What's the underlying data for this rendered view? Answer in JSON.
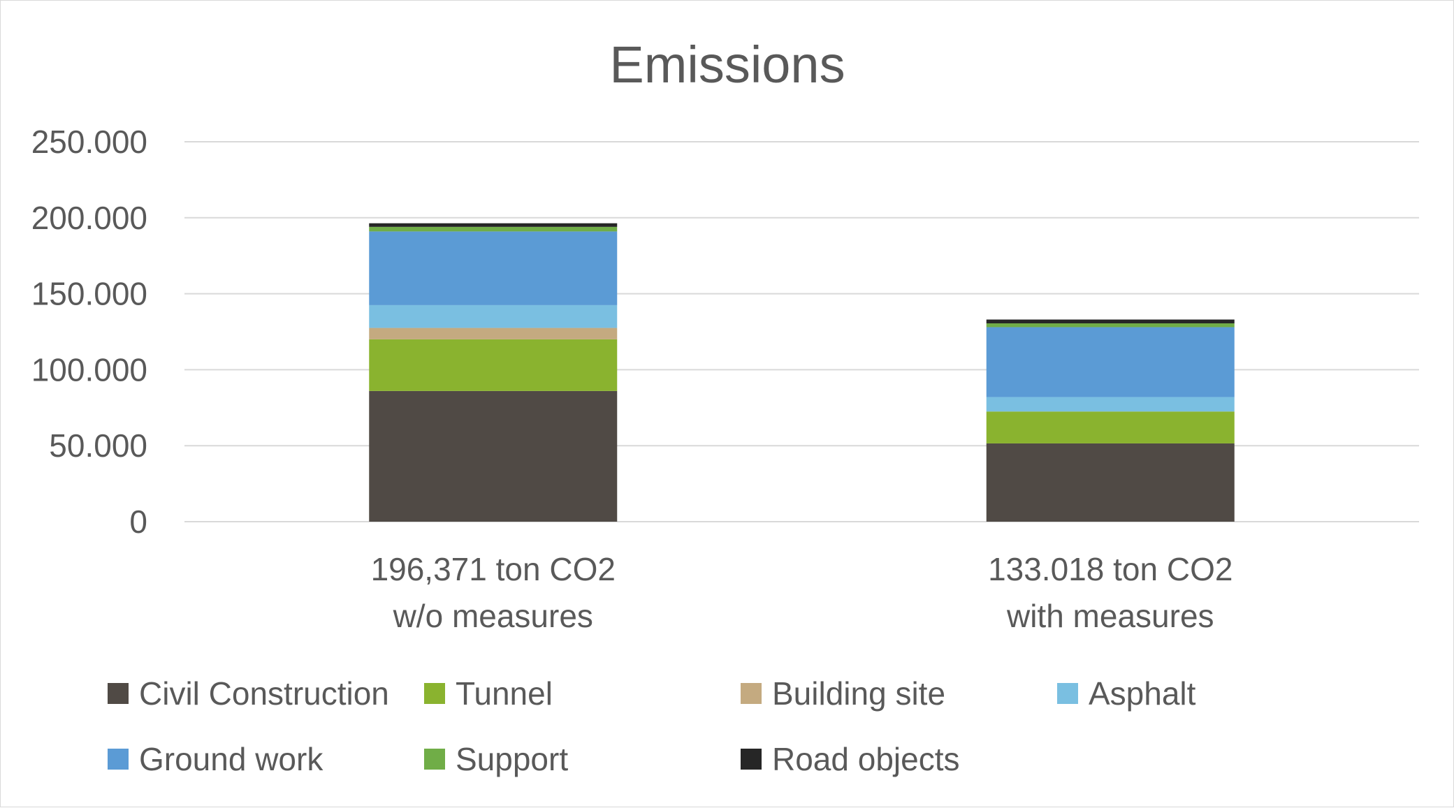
{
  "chart_data": {
    "type": "bar",
    "stacked": true,
    "title": "Emissions",
    "xlabel": "",
    "ylabel": "",
    "ylim": [
      0,
      250000
    ],
    "y_ticks": [
      0,
      50000,
      100000,
      150000,
      200000,
      250000
    ],
    "y_tick_labels": [
      "0",
      "50.000",
      "100.000",
      "150.000",
      "200.000",
      "250.000"
    ],
    "grid": true,
    "legend_position": "bottom",
    "categories": [
      [
        "196,371 ton CO2",
        "w/o measures"
      ],
      [
        "133.018 ton CO2",
        "with measures"
      ]
    ],
    "series": [
      {
        "name": "Civil Construction",
        "color": "#504a45",
        "values": [
          86000,
          51500
        ]
      },
      {
        "name": "Tunnel",
        "color": "#8ab32f",
        "values": [
          34000,
          21000
        ]
      },
      {
        "name": "Building site",
        "color": "#c4aa80",
        "values": [
          7500,
          0
        ]
      },
      {
        "name": "Asphalt",
        "color": "#7abfe1",
        "values": [
          15000,
          9500
        ]
      },
      {
        "name": "Ground work",
        "color": "#5b9bd5",
        "values": [
          48500,
          46000
        ]
      },
      {
        "name": "Support",
        "color": "#70ad47",
        "values": [
          3000,
          2500
        ]
      },
      {
        "name": "Road objects",
        "color": "#262626",
        "values": [
          2371,
          2518
        ]
      }
    ]
  }
}
